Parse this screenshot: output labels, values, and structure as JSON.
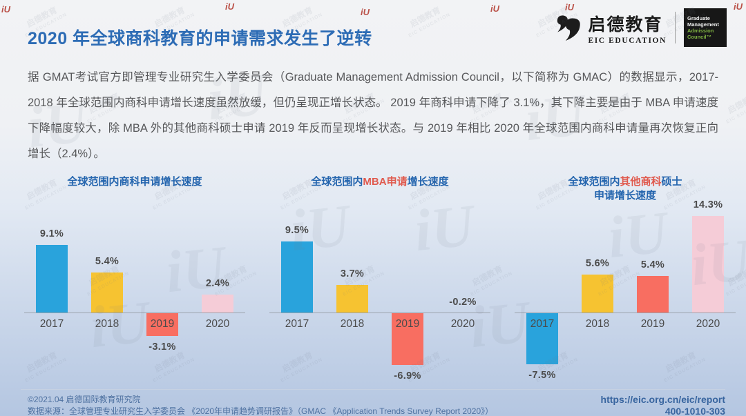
{
  "header": {
    "title": "2020 年全球商科教育的申请需求发生了逆转",
    "eic_logo": {
      "cn": "启德教育",
      "en": "EIC EDUCATION"
    },
    "gmac_badge": {
      "line1": "Graduate",
      "line2": "Management",
      "line3": "Admission",
      "line4": "Council™"
    }
  },
  "intro_paragraph": "据 GMAT考试官方即管理专业研究生入学委员会（Graduate Management Admission Council，以下简称为 GMAC）的数据显示，2017-2018 年全球范围内商科申请增长速度虽然放缓，但仍呈现正增长状态。 2019 年商科申请下降了 3.1%，其下降主要是由于 MBA 申请速度下降幅度较大，除 MBA 外的其他商科硕士申请 2019 年反而呈现增长状态。与 2019 年相比 2020 年全球范围内商科申请量再次恢复正向增长（2.4%）。",
  "colors": {
    "title_blue": "#2d6cb5",
    "accent_red": "#e05a4e",
    "bar_2017_blue": "#29a3dc",
    "bar_2018_yellow": "#f6c331",
    "bar_2019_red": "#f86e61",
    "bar_2020_pink": "#f5ccd7"
  },
  "chart_data": [
    {
      "type": "bar",
      "title_segments": [
        {
          "text": "全球范围内商科申请增长速度",
          "accent": false
        }
      ],
      "categories": [
        "2017",
        "2018",
        "2019",
        "2020"
      ],
      "values": [
        9.1,
        5.4,
        -3.1,
        2.4
      ],
      "labels": [
        "9.1%",
        "5.4%",
        "-3.1%",
        "2.4%"
      ],
      "bar_colors": [
        "#29a3dc",
        "#f6c331",
        "#f86e61",
        "#f5ccd7"
      ],
      "xlabel": "",
      "ylabel": "",
      "ylim": [
        -9,
        16
      ],
      "grid": false,
      "legend": "none"
    },
    {
      "type": "bar",
      "title_segments": [
        {
          "text": "全球范围内",
          "accent": false
        },
        {
          "text": "MBA申请",
          "accent": true
        },
        {
          "text": "增长速度",
          "accent": false
        }
      ],
      "categories": [
        "2017",
        "2018",
        "2019",
        "2020"
      ],
      "values": [
        9.5,
        3.7,
        -6.9,
        -0.2
      ],
      "labels": [
        "9.5%",
        "3.7%",
        "-6.9%",
        "-0.2%"
      ],
      "bar_colors": [
        "#29a3dc",
        "#f6c331",
        "#f86e61",
        "#f5ccd7"
      ],
      "xlabel": "",
      "ylabel": "",
      "ylim": [
        -9,
        16
      ],
      "grid": false,
      "legend": "none"
    },
    {
      "type": "bar",
      "title_segments": [
        {
          "text": "全球范围内",
          "accent": false
        },
        {
          "text": "其他商科",
          "accent": true
        },
        {
          "text": "硕士",
          "accent": false
        },
        {
          "text": "申请增长速度",
          "accent": false,
          "newline": true
        }
      ],
      "categories": [
        "2017",
        "2018",
        "2019",
        "2020"
      ],
      "values": [
        -7.5,
        5.6,
        5.4,
        14.3
      ],
      "labels": [
        "-7.5%",
        "5.6%",
        "5.4%",
        "14.3%"
      ],
      "bar_colors": [
        "#29a3dc",
        "#f6c331",
        "#f86e61",
        "#f5ccd7"
      ],
      "xlabel": "",
      "ylabel": "",
      "ylim": [
        -9,
        16
      ],
      "grid": false,
      "legend": "none"
    }
  ],
  "footer": {
    "copyright": "©2021.04 启德国际教育研究院",
    "source": "数据来源：全球管理专业研究生入学委员会 《2020年申请趋势调研报告》（GMAC 《Application Trends Survey Report 2020》）",
    "url": "https://eic.org.cn/eic/report",
    "phone": "400-1010-303"
  },
  "watermark": {
    "cn": "启德教育",
    "en": "EIC EDUCATION",
    "logo_glyph": "iU"
  }
}
